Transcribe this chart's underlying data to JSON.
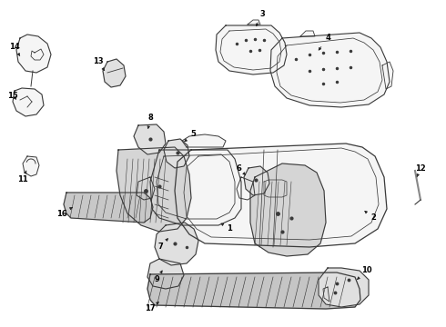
{
  "bg_color": "#ffffff",
  "line_color": "#3a3a3a",
  "fill_color": "#f5f5f5",
  "fill_dark": "#e0e0e0",
  "fill_gray": "#c8c8c8",
  "dpi": 100,
  "fig_width": 4.9,
  "fig_height": 3.6
}
